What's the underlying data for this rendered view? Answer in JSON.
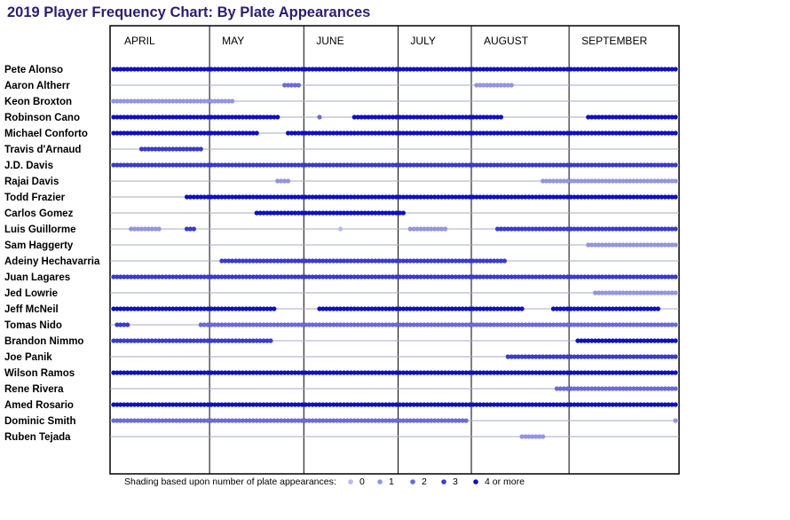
{
  "title": "2019 Player Frequency Chart: By Plate Appearances",
  "chart_data": {
    "type": "scatter",
    "title": "2019 Player Frequency Chart: By Plate Appearances",
    "x_unit": "game number (season schedule, 1-162)",
    "months": [
      {
        "label": "APRIL",
        "first_game": 1
      },
      {
        "label": "MAY",
        "first_game": 29
      },
      {
        "label": "JUNE",
        "first_game": 56
      },
      {
        "label": "JULY",
        "first_game": 83
      },
      {
        "label": "AUGUST",
        "first_game": 104
      },
      {
        "label": "SEPTEMBER",
        "first_game": 132
      }
    ],
    "total_games": 162,
    "shade_colors": [
      "#b9b9ec",
      "#9494e0",
      "#6a6ad8",
      "#3a3acc",
      "#0f0fc2"
    ],
    "legend": {
      "caption": "Shading based upon number of plate appearances:",
      "levels": [
        "0",
        "1",
        "2",
        "3",
        "4 or more"
      ]
    },
    "note": "Each series is a list of [first_game, last_game, plate_appearance_level] runs; level 0-3 = that many PA, 4 = 4 or more.",
    "players": [
      {
        "name": "Pete Alonso",
        "runs": [
          [
            1,
            162,
            4
          ]
        ]
      },
      {
        "name": "Aaron Altherr",
        "runs": [
          [
            50,
            54,
            2
          ],
          [
            105,
            115,
            1
          ]
        ]
      },
      {
        "name": "Keon Broxton",
        "runs": [
          [
            1,
            35,
            1
          ]
        ]
      },
      {
        "name": "Robinson Cano",
        "runs": [
          [
            1,
            48,
            4
          ],
          [
            60,
            60,
            2
          ],
          [
            70,
            112,
            4
          ],
          [
            137,
            162,
            4
          ]
        ]
      },
      {
        "name": "Michael Conforto",
        "runs": [
          [
            1,
            42,
            4
          ],
          [
            51,
            162,
            4
          ]
        ]
      },
      {
        "name": "Travis d'Arnaud",
        "runs": [
          [
            9,
            26,
            3
          ]
        ]
      },
      {
        "name": "J.D. Davis",
        "runs": [
          [
            1,
            162,
            3
          ]
        ]
      },
      {
        "name": "Rajai Davis",
        "runs": [
          [
            48,
            51,
            1
          ],
          [
            124,
            162,
            1
          ]
        ]
      },
      {
        "name": "Todd Frazier",
        "runs": [
          [
            22,
            162,
            4
          ]
        ]
      },
      {
        "name": "Carlos Gomez",
        "runs": [
          [
            42,
            84,
            4
          ]
        ]
      },
      {
        "name": "Luis Guillorme",
        "runs": [
          [
            6,
            14,
            1
          ],
          [
            22,
            24,
            3
          ],
          [
            66,
            66,
            0
          ],
          [
            86,
            96,
            1
          ],
          [
            111,
            162,
            3
          ]
        ]
      },
      {
        "name": "Sam Haggerty",
        "runs": [
          [
            137,
            162,
            1
          ]
        ]
      },
      {
        "name": "Adeiny Hechavarria",
        "runs": [
          [
            32,
            113,
            3
          ]
        ]
      },
      {
        "name": "Juan Lagares",
        "runs": [
          [
            1,
            162,
            3
          ]
        ]
      },
      {
        "name": "Jed Lowrie",
        "runs": [
          [
            139,
            162,
            1
          ]
        ]
      },
      {
        "name": "Jeff McNeil",
        "runs": [
          [
            1,
            47,
            4
          ],
          [
            60,
            118,
            4
          ],
          [
            127,
            157,
            4
          ]
        ]
      },
      {
        "name": "Tomas Nido",
        "runs": [
          [
            2,
            5,
            3
          ],
          [
            26,
            162,
            2
          ]
        ]
      },
      {
        "name": "Brandon Nimmo",
        "runs": [
          [
            1,
            46,
            3
          ],
          [
            134,
            162,
            4
          ]
        ]
      },
      {
        "name": "Joe Panik",
        "runs": [
          [
            114,
            162,
            3
          ]
        ]
      },
      {
        "name": "Wilson Ramos",
        "runs": [
          [
            1,
            162,
            4
          ]
        ]
      },
      {
        "name": "Rene Rivera",
        "runs": [
          [
            128,
            162,
            2
          ]
        ]
      },
      {
        "name": "Amed Rosario",
        "runs": [
          [
            1,
            162,
            4
          ]
        ]
      },
      {
        "name": "Dominic Smith",
        "runs": [
          [
            1,
            102,
            2
          ],
          [
            162,
            162,
            1
          ]
        ]
      },
      {
        "name": "Ruben Tejada",
        "runs": [
          [
            118,
            124,
            1
          ]
        ]
      }
    ]
  }
}
